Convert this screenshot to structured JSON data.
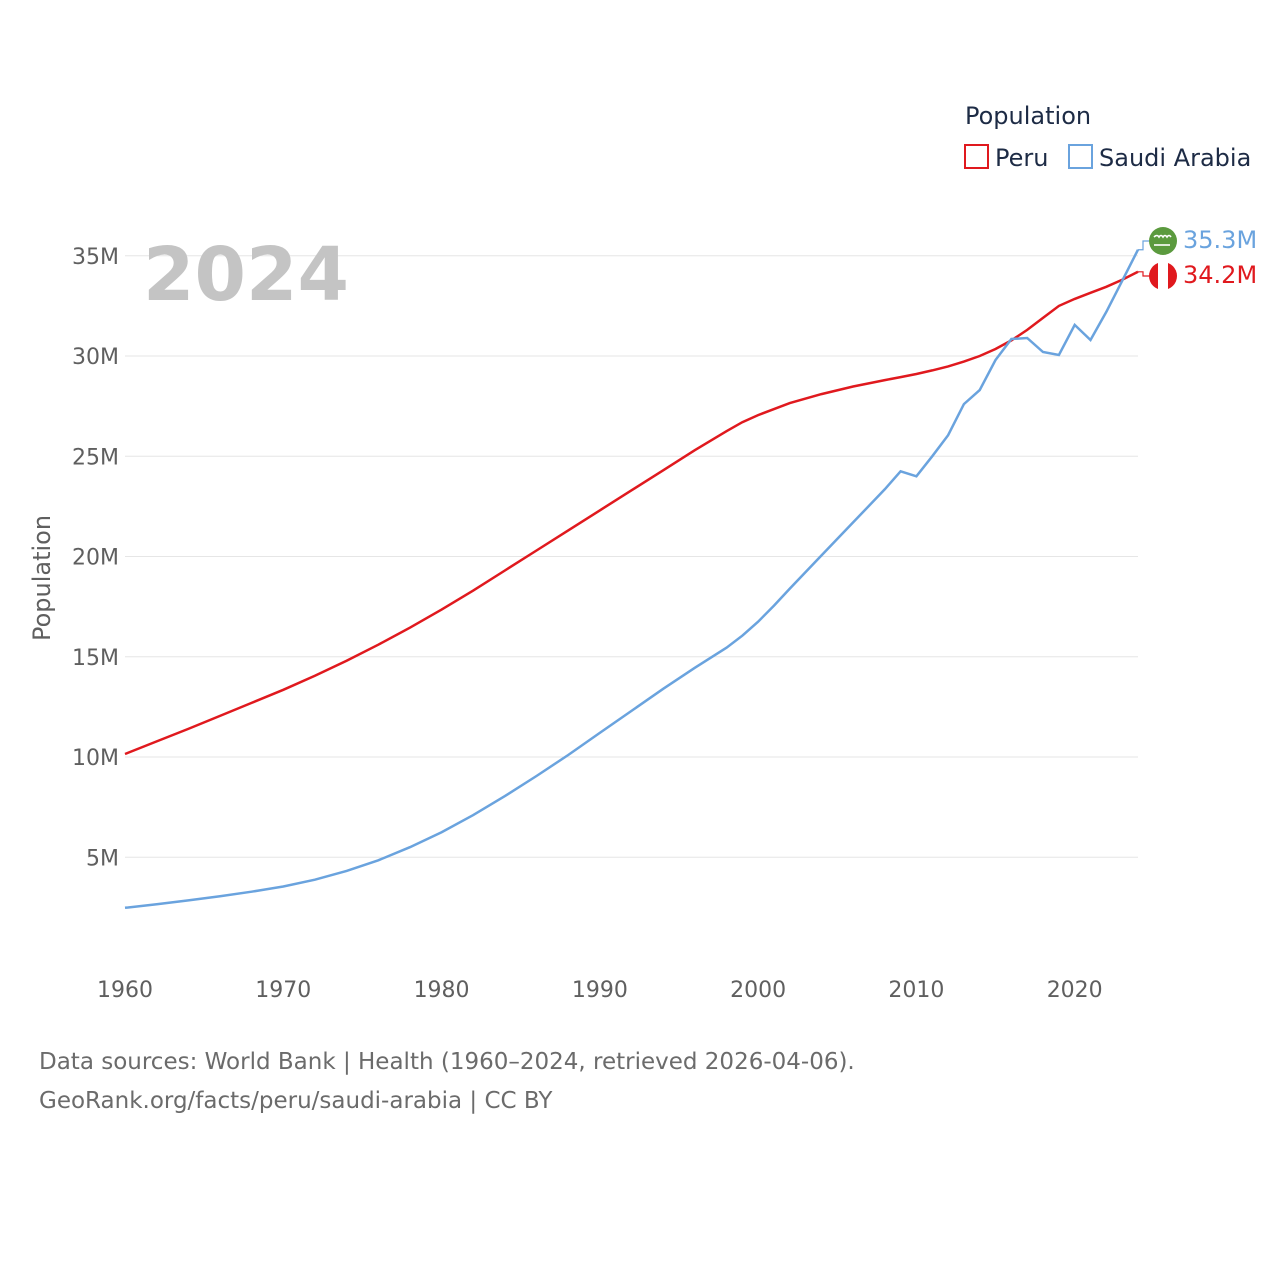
{
  "chart_data": {
    "type": "line",
    "title": "",
    "year_label": "2024",
    "xlabel": "",
    "ylabel": "Population",
    "xlim": [
      1960,
      2024
    ],
    "ylim": [
      0,
      37000000
    ],
    "x_ticks": [
      1960,
      1970,
      1980,
      1990,
      2000,
      2010,
      2020
    ],
    "x_tick_labels": [
      "1960",
      "1970",
      "1980",
      "1990",
      "2000",
      "2010",
      "2020"
    ],
    "y_ticks": [
      5000000,
      10000000,
      15000000,
      20000000,
      25000000,
      30000000,
      35000000
    ],
    "y_tick_labels": [
      "5M",
      "10M",
      "15M",
      "20M",
      "25M",
      "30M",
      "35M"
    ],
    "grid": "horizontal",
    "legend": {
      "title": "Population",
      "position": "top-right"
    },
    "x": [
      1960,
      1962,
      1964,
      1966,
      1968,
      1970,
      1972,
      1974,
      1976,
      1978,
      1980,
      1982,
      1984,
      1986,
      1988,
      1990,
      1992,
      1994,
      1996,
      1998,
      1999,
      2000,
      2001,
      2002,
      2004,
      2006,
      2008,
      2009,
      2010,
      2011,
      2012,
      2013,
      2014,
      2015,
      2016,
      2017,
      2018,
      2019,
      2020,
      2021,
      2022,
      2023,
      2024
    ],
    "series": [
      {
        "name": "Peru",
        "color": "#e0191e",
        "end_label": "34.2M",
        "flag": "peru-flag",
        "values": [
          10150000,
          10780000,
          11400000,
          12050000,
          12700000,
          13350000,
          14050000,
          14800000,
          15600000,
          16450000,
          17350000,
          18300000,
          19300000,
          20300000,
          21300000,
          22300000,
          23300000,
          24300000,
          25300000,
          26250000,
          26700000,
          27050000,
          27350000,
          27650000,
          28100000,
          28480000,
          28800000,
          28950000,
          29100000,
          29280000,
          29480000,
          29720000,
          30000000,
          30350000,
          30780000,
          31300000,
          31900000,
          32500000,
          32850000,
          33150000,
          33450000,
          33800000,
          34200000
        ]
      },
      {
        "name": "Saudi Arabia",
        "color": "#6aa3de",
        "end_label": "35.3M",
        "flag": "saudi-arabia-flag",
        "values": [
          2480000,
          2660000,
          2850000,
          3050000,
          3280000,
          3540000,
          3880000,
          4320000,
          4850000,
          5500000,
          6250000,
          7100000,
          8050000,
          9050000,
          10100000,
          11200000,
          12300000,
          13400000,
          14450000,
          15450000,
          16050000,
          16750000,
          17550000,
          18400000,
          20050000,
          21700000,
          23350000,
          24250000,
          24000000,
          25000000,
          26050000,
          27600000,
          28300000,
          29800000,
          30850000,
          30900000,
          30200000,
          30050000,
          31550000,
          30800000,
          32200000,
          33750000,
          35300000
        ]
      }
    ],
    "sources": [
      "Data sources: World Bank | Health (1960–2024, retrieved 2026-04-06).",
      "GeoRank.org/facts/peru/saudi-arabia | CC BY"
    ]
  }
}
